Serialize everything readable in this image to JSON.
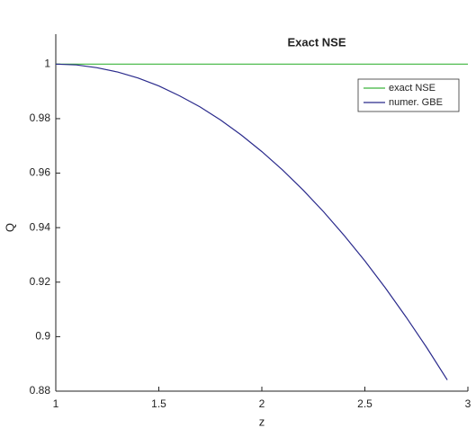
{
  "chart_data": {
    "type": "line",
    "title": "Exact NSE",
    "xlabel": "z",
    "ylabel": "Q",
    "xlim": [
      1,
      3
    ],
    "xticks": [
      1,
      1.5,
      2,
      2.5,
      3
    ],
    "ylim": [
      0.88,
      1.011
    ],
    "yticks": [
      0.88,
      0.9,
      0.92,
      0.94,
      0.96,
      0.98,
      1
    ],
    "grid": false,
    "legend": "upper right",
    "series": [
      {
        "name": "exact NSE",
        "color": "#3cb43c",
        "x": [
          1,
          3
        ],
        "values": [
          1,
          1
        ]
      },
      {
        "name": "numer. GBE",
        "color": "#2a2a8c",
        "x": [
          1,
          1.1,
          1.2,
          1.3,
          1.4,
          1.5,
          1.6,
          1.7,
          1.8,
          1.9,
          2,
          2.1,
          2.2,
          2.3,
          2.4,
          2.5,
          2.6,
          2.7,
          2.8,
          2.9
        ],
        "values": [
          1,
          0.9997,
          0.9987,
          0.9971,
          0.9949,
          0.992,
          0.9884,
          0.9843,
          0.9795,
          0.974,
          0.9679,
          0.9612,
          0.9538,
          0.9458,
          0.9371,
          0.9278,
          0.9178,
          0.9072,
          0.896,
          0.8841
        ]
      }
    ]
  }
}
